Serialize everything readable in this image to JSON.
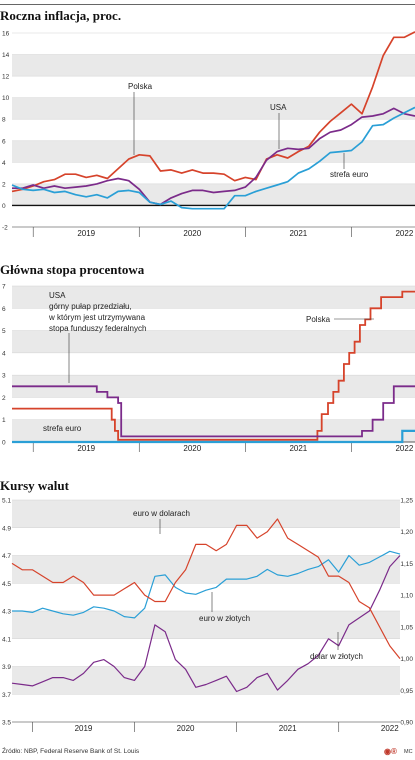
{
  "colors": {
    "polska": "#d6432b",
    "usa": "#7b2b8a",
    "euro": "#2a9fd6",
    "zero": "#111111",
    "band": "#e9e9e9"
  },
  "logo": "◉®",
  "chart_data": [
    {
      "type": "line",
      "title": "Roczna inflacja, proc.",
      "ylim": [
        -2,
        16
      ],
      "yticks": [
        "-2",
        "0",
        "2",
        "4",
        "6",
        "8",
        "10",
        "12",
        "14",
        "16"
      ],
      "years": [
        "2019",
        "2020",
        "2021",
        "2022"
      ],
      "series": [
        {
          "name": "Polska",
          "x": [
            2018.8,
            2018.9,
            2019.0,
            2019.1,
            2019.2,
            2019.3,
            2019.4,
            2019.5,
            2019.6,
            2019.7,
            2019.8,
            2019.9,
            2020.0,
            2020.1,
            2020.2,
            2020.3,
            2020.4,
            2020.5,
            2020.6,
            2020.7,
            2020.8,
            2020.9,
            2021.0,
            2021.1,
            2021.2,
            2021.3,
            2021.4,
            2021.5,
            2021.6,
            2021.7,
            2021.8,
            2021.9,
            2022.0,
            2022.1,
            2022.2,
            2022.3,
            2022.4,
            2022.5,
            2022.6
          ],
          "y": [
            1.3,
            1.5,
            1.8,
            2.2,
            2.4,
            2.9,
            2.9,
            2.6,
            2.8,
            2.5,
            3.4,
            4.3,
            4.7,
            4.6,
            3.2,
            3.3,
            3.0,
            3.3,
            3.0,
            3.0,
            2.9,
            2.3,
            2.6,
            2.4,
            4.3,
            4.7,
            4.4,
            5.0,
            5.5,
            6.8,
            7.8,
            8.6,
            9.4,
            8.5,
            11.0,
            13.9,
            15.6,
            15.6,
            16.1
          ]
        },
        {
          "name": "USA",
          "x": [
            2018.8,
            2018.9,
            2019.0,
            2019.1,
            2019.2,
            2019.3,
            2019.4,
            2019.5,
            2019.6,
            2019.7,
            2019.8,
            2019.9,
            2020.0,
            2020.1,
            2020.2,
            2020.3,
            2020.4,
            2020.5,
            2020.6,
            2020.7,
            2020.8,
            2020.9,
            2021.0,
            2021.1,
            2021.2,
            2021.3,
            2021.4,
            2021.5,
            2021.6,
            2021.7,
            2021.8,
            2021.9,
            2022.0,
            2022.1,
            2022.2,
            2022.3,
            2022.4,
            2022.5,
            2022.6
          ],
          "y": [
            1.6,
            1.6,
            1.9,
            1.6,
            1.8,
            1.6,
            1.7,
            1.8,
            2.0,
            2.3,
            2.5,
            2.3,
            1.5,
            0.3,
            0.1,
            0.7,
            1.1,
            1.4,
            1.4,
            1.2,
            1.3,
            1.4,
            1.7,
            2.6,
            4.2,
            5.0,
            5.3,
            5.2,
            5.3,
            6.2,
            6.8,
            7.0,
            7.5,
            8.2,
            8.3,
            8.5,
            9.0,
            8.5,
            8.3
          ]
        },
        {
          "name": "strefa euro",
          "x": [
            2018.8,
            2018.9,
            2019.0,
            2019.1,
            2019.2,
            2019.3,
            2019.4,
            2019.5,
            2019.6,
            2019.7,
            2019.8,
            2019.9,
            2020.0,
            2020.1,
            2020.2,
            2020.3,
            2020.4,
            2020.5,
            2020.6,
            2020.7,
            2020.8,
            2020.9,
            2021.0,
            2021.1,
            2021.2,
            2021.3,
            2021.4,
            2021.5,
            2021.6,
            2021.7,
            2021.8,
            2021.9,
            2022.0,
            2022.1,
            2022.2,
            2022.3,
            2022.4,
            2022.5,
            2022.6
          ],
          "y": [
            1.9,
            1.5,
            1.4,
            1.5,
            1.2,
            1.3,
            1.0,
            0.8,
            1.0,
            0.7,
            1.3,
            1.4,
            1.2,
            0.3,
            0.1,
            0.4,
            -0.2,
            -0.3,
            -0.3,
            -0.3,
            -0.3,
            0.9,
            0.9,
            1.3,
            1.6,
            1.9,
            2.2,
            3.0,
            3.4,
            4.1,
            4.9,
            5.0,
            5.1,
            5.9,
            7.4,
            7.5,
            8.1,
            8.6,
            9.1
          ]
        }
      ],
      "annotations": [
        "Polska",
        "USA",
        "strefa euro"
      ]
    },
    {
      "type": "line",
      "title": "Główna stopa procentowa",
      "ylim": [
        0,
        7
      ],
      "yticks": [
        "0",
        "1",
        "2",
        "3",
        "4",
        "5",
        "6",
        "7"
      ],
      "years": [
        "2019",
        "2020",
        "2021",
        "2022"
      ],
      "series": [
        {
          "name": "Polska",
          "step": true,
          "x": [
            2018.8,
            2019.74,
            2019.77,
            2019.8,
            2019.85,
            2021.68,
            2021.72,
            2021.78,
            2021.83,
            2021.88,
            2021.93,
            2021.98,
            2022.03,
            2022.08,
            2022.13,
            2022.18,
            2022.23,
            2022.28,
            2022.33,
            2022.38,
            2022.43,
            2022.48,
            2022.53,
            2022.6
          ],
          "y": [
            1.5,
            1.0,
            0.5,
            0.1,
            0.1,
            0.5,
            1.25,
            1.75,
            2.25,
            2.75,
            3.5,
            4.0,
            4.5,
            5.25,
            5.5,
            6.0,
            6.0,
            6.5,
            6.5,
            6.5,
            6.5,
            6.75,
            6.75,
            6.75
          ]
        },
        {
          "name": "USA",
          "step": true,
          "x": [
            2018.8,
            2019.15,
            2019.6,
            2019.7,
            2019.8,
            2019.83,
            2021.96,
            2022.1,
            2022.2,
            2022.3,
            2022.4,
            2022.6
          ],
          "y": [
            2.5,
            2.5,
            2.25,
            2.0,
            1.75,
            0.25,
            0.25,
            0.5,
            1.0,
            1.75,
            2.5,
            2.5
          ]
        },
        {
          "name": "strefa euro",
          "step": true,
          "x": [
            2018.8,
            2022.48,
            2022.6
          ],
          "y": [
            0.0,
            0.5,
            0.5
          ]
        }
      ],
      "annotations": [
        "USA",
        "górny pułap przedziału,",
        "w którym jest utrzymywana",
        "stopa funduszy federalnych",
        "Polska",
        "strefa euro"
      ]
    },
    {
      "type": "line",
      "title": "Kursy walut",
      "ylim_left": [
        3.5,
        5.1
      ],
      "ylim_right": [
        0.9,
        1.25
      ],
      "yticks_left": [
        "3.5",
        "3.7",
        "3.9",
        "4.1",
        "4.3",
        "4.5",
        "4.7",
        "4.9",
        "5.1"
      ],
      "yticks_right": [
        "0,90",
        "0,95",
        "1,00",
        "1,05",
        "1,10",
        "1,15",
        "1,20",
        "1,25"
      ],
      "years": [
        "2019",
        "2020",
        "2021",
        "2022"
      ],
      "series": [
        {
          "name": "euro w dolarach",
          "axis": "right",
          "x": [
            2018.8,
            2018.9,
            2019.0,
            2019.1,
            2019.2,
            2019.3,
            2019.4,
            2019.5,
            2019.6,
            2019.7,
            2019.8,
            2019.9,
            2020.0,
            2020.1,
            2020.2,
            2020.3,
            2020.4,
            2020.5,
            2020.6,
            2020.7,
            2020.8,
            2020.9,
            2021.0,
            2021.1,
            2021.2,
            2021.3,
            2021.4,
            2021.5,
            2021.6,
            2021.7,
            2021.8,
            2021.9,
            2022.0,
            2022.1,
            2022.2,
            2022.3,
            2022.4,
            2022.5,
            2022.6
          ],
          "y": [
            1.15,
            1.14,
            1.14,
            1.13,
            1.12,
            1.12,
            1.13,
            1.12,
            1.1,
            1.1,
            1.1,
            1.11,
            1.12,
            1.1,
            1.09,
            1.09,
            1.12,
            1.14,
            1.18,
            1.18,
            1.17,
            1.18,
            1.21,
            1.21,
            1.19,
            1.2,
            1.22,
            1.19,
            1.18,
            1.17,
            1.16,
            1.13,
            1.13,
            1.12,
            1.09,
            1.08,
            1.05,
            1.02,
            1.0
          ]
        },
        {
          "name": "euro w złotych",
          "axis": "left",
          "x": [
            2018.8,
            2018.9,
            2019.0,
            2019.1,
            2019.2,
            2019.3,
            2019.4,
            2019.5,
            2019.6,
            2019.7,
            2019.8,
            2019.9,
            2020.0,
            2020.1,
            2020.2,
            2020.3,
            2020.4,
            2020.5,
            2020.6,
            2020.7,
            2020.8,
            2020.9,
            2021.0,
            2021.1,
            2021.2,
            2021.3,
            2021.4,
            2021.5,
            2021.6,
            2021.7,
            2021.8,
            2021.9,
            2022.0,
            2022.1,
            2022.2,
            2022.3,
            2022.4,
            2022.5,
            2022.6
          ],
          "y": [
            4.3,
            4.3,
            4.29,
            4.32,
            4.3,
            4.28,
            4.27,
            4.29,
            4.33,
            4.32,
            4.3,
            4.26,
            4.25,
            4.32,
            4.55,
            4.56,
            4.47,
            4.43,
            4.42,
            4.45,
            4.47,
            4.53,
            4.53,
            4.53,
            4.55,
            4.6,
            4.56,
            4.55,
            4.57,
            4.6,
            4.62,
            4.67,
            4.58,
            4.7,
            4.63,
            4.65,
            4.69,
            4.73,
            4.71
          ]
        },
        {
          "name": "dolar w złotych",
          "axis": "left",
          "x": [
            2018.8,
            2018.9,
            2019.0,
            2019.1,
            2019.2,
            2019.3,
            2019.4,
            2019.5,
            2019.6,
            2019.7,
            2019.8,
            2019.9,
            2020.0,
            2020.1,
            2020.2,
            2020.3,
            2020.4,
            2020.5,
            2020.6,
            2020.7,
            2020.8,
            2020.9,
            2021.0,
            2021.1,
            2021.2,
            2021.3,
            2021.4,
            2021.5,
            2021.6,
            2021.7,
            2021.8,
            2021.9,
            2022.0,
            2022.1,
            2022.2,
            2022.3,
            2022.4,
            2022.5,
            2022.6
          ],
          "y": [
            3.78,
            3.77,
            3.76,
            3.79,
            3.82,
            3.82,
            3.8,
            3.85,
            3.93,
            3.95,
            3.9,
            3.82,
            3.8,
            3.9,
            4.2,
            4.15,
            3.95,
            3.88,
            3.75,
            3.77,
            3.8,
            3.83,
            3.72,
            3.75,
            3.82,
            3.85,
            3.73,
            3.8,
            3.88,
            3.92,
            3.98,
            4.1,
            4.05,
            4.2,
            4.25,
            4.3,
            4.45,
            4.62,
            4.7
          ]
        }
      ],
      "annotations": [
        "euro w dolarach",
        "euro w złotych",
        "dolar w złotych"
      ]
    }
  ],
  "footer": {
    "source": "Źródło: NBP, Federal Reserve Bank of St. Louis",
    "mc": "MC"
  }
}
